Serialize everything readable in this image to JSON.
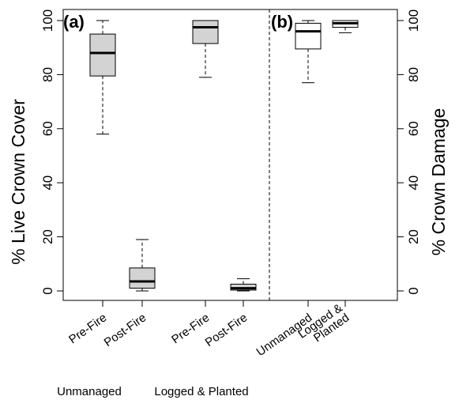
{
  "chart_data": {
    "type": "boxplot",
    "y_left_label": "% Live Crown Cover",
    "y_right_label": "% Crown Damage",
    "ylim": [
      0,
      100
    ],
    "yticks": [
      0,
      20,
      40,
      60,
      80,
      100
    ],
    "panels": [
      {
        "label": "(a)",
        "fill": "#d3d3d3",
        "boxes": [
          {
            "category": "Pre-Fire",
            "whisker_low": 58,
            "q1": 79.5,
            "median": 88,
            "q3": 95,
            "whisker_high": 100
          },
          {
            "category": "Post-Fire",
            "whisker_low": 0,
            "q1": 1,
            "median": 3.5,
            "q3": 8.5,
            "whisker_high": 19
          },
          {
            "category": "Pre-Fire",
            "whisker_low": 79,
            "q1": 91.5,
            "median": 97.5,
            "q3": 100,
            "whisker_high": 100
          },
          {
            "category": "Post-Fire",
            "whisker_low": 0,
            "q1": 0.3,
            "median": 1,
            "q3": 2.5,
            "whisker_high": 4.5
          }
        ],
        "groups": [
          "Unmanaged",
          "Logged & Planted"
        ]
      },
      {
        "label": "(b)",
        "fill": "#ffffff",
        "boxes": [
          {
            "category": "Unmanaged",
            "whisker_low": 77,
            "q1": 89.5,
            "median": 96,
            "q3": 99,
            "whisker_high": 100
          },
          {
            "category": "Logged &\nPlanted",
            "whisker_low": 95.5,
            "q1": 97.5,
            "median": 99,
            "q3": 100,
            "whisker_high": 100
          }
        ]
      }
    ]
  }
}
